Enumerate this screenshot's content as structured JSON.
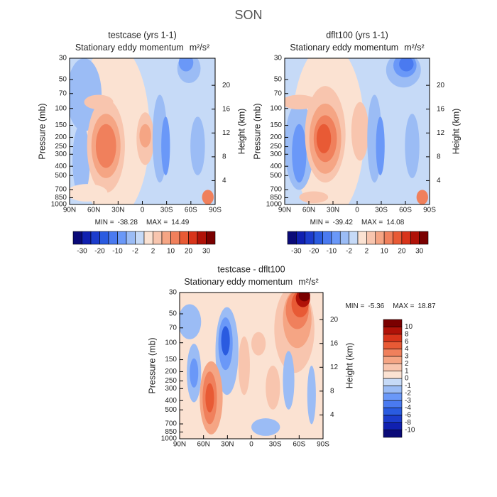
{
  "figure_title": "SON",
  "chart_data": [
    {
      "type": "contour",
      "title": "testcase (yrs 1-1)",
      "subtitle": "Stationary eddy momentum",
      "units": "m²/s²",
      "ylabel": "Pressure (mb)",
      "y2label": "Height (km)",
      "xlim": [
        90,
        -90
      ],
      "xticks": [
        {
          "value": 90,
          "label": "90N"
        },
        {
          "value": 60,
          "label": "60N"
        },
        {
          "value": 30,
          "label": "30N"
        },
        0,
        {
          "value": -30,
          "label": "30S"
        },
        {
          "value": -60,
          "label": "60S"
        },
        {
          "value": -90,
          "label": "90S"
        }
      ],
      "ylim": [
        1000,
        30
      ],
      "log_y": true,
      "yticks": [
        30,
        50,
        70,
        100,
        150,
        200,
        250,
        300,
        400,
        500,
        700,
        850,
        1000
      ],
      "y2ticks": [
        4,
        8,
        12,
        16,
        20
      ],
      "min_label": "MIN =",
      "min": -38.28,
      "max_label": "MAX =",
      "max": 14.49,
      "colorbar": {
        "orientation": "horizontal",
        "colors": [
          "#0a0a78",
          "#1020b0",
          "#1c3ccc",
          "#2a5be0",
          "#4a7af0",
          "#6a98f8",
          "#9bbcf5",
          "#c6daf7",
          "#fbe2d2",
          "#f8c5ae",
          "#f5a584",
          "#f0805c",
          "#e85a35",
          "#d8341a",
          "#b01208",
          "#7a0000"
        ],
        "labels": [
          -30,
          -20,
          -10,
          -2,
          2,
          10,
          20,
          30
        ]
      }
    },
    {
      "type": "contour",
      "title": "dflt100 (yrs 1-1)",
      "subtitle": "Stationary eddy momentum",
      "units": "m²/s²",
      "ylabel": "Pressure (mb)",
      "y2label": "Height (km)",
      "xlim": [
        90,
        -90
      ],
      "xticks": [
        {
          "value": 90,
          "label": "90N"
        },
        {
          "value": 60,
          "label": "60N"
        },
        {
          "value": 30,
          "label": "30N"
        },
        0,
        {
          "value": -30,
          "label": "30S"
        },
        {
          "value": -60,
          "label": "60S"
        },
        {
          "value": -90,
          "label": "90S"
        }
      ],
      "ylim": [
        1000,
        30
      ],
      "log_y": true,
      "yticks": [
        30,
        50,
        70,
        100,
        150,
        200,
        250,
        300,
        400,
        500,
        700,
        850,
        1000
      ],
      "y2ticks": [
        4,
        8,
        12,
        16,
        20
      ],
      "min_label": "MIN =",
      "min": -39.42,
      "max_label": "MAX =",
      "max": 14.08,
      "colorbar": {
        "orientation": "horizontal",
        "colors": [
          "#0a0a78",
          "#1020b0",
          "#1c3ccc",
          "#2a5be0",
          "#4a7af0",
          "#6a98f8",
          "#9bbcf5",
          "#c6daf7",
          "#fbe2d2",
          "#f8c5ae",
          "#f5a584",
          "#f0805c",
          "#e85a35",
          "#d8341a",
          "#b01208",
          "#7a0000"
        ],
        "labels": [
          -30,
          -20,
          -10,
          -2,
          2,
          10,
          20,
          30
        ]
      }
    },
    {
      "type": "contour",
      "title": "testcase - dflt100",
      "subtitle": "Stationary eddy momentum",
      "units": "m²/s²",
      "ylabel": "Pressure (mb)",
      "y2label": "Height (km)",
      "xlim": [
        90,
        -90
      ],
      "xticks": [
        {
          "value": 90,
          "label": "90N"
        },
        {
          "value": 60,
          "label": "60N"
        },
        {
          "value": 30,
          "label": "30N"
        },
        0,
        {
          "value": -30,
          "label": "30S"
        },
        {
          "value": -60,
          "label": "60S"
        },
        {
          "value": -90,
          "label": "90S"
        }
      ],
      "ylim": [
        1000,
        30
      ],
      "log_y": true,
      "yticks": [
        30,
        50,
        70,
        100,
        150,
        200,
        250,
        300,
        400,
        500,
        700,
        850,
        1000
      ],
      "y2ticks": [
        4,
        8,
        12,
        16,
        20
      ],
      "min_label": "MIN =",
      "min": -5.36,
      "max_label": "MAX =",
      "max": 18.87,
      "colorbar": {
        "orientation": "vertical",
        "colors": [
          "#0a0a78",
          "#1020b0",
          "#1c3ccc",
          "#2a5be0",
          "#4a7af0",
          "#6a98f8",
          "#9bbcf5",
          "#c6daf7",
          "#fbe2d2",
          "#f8c5ae",
          "#f5a584",
          "#f0805c",
          "#e85a35",
          "#d8341a",
          "#b01208",
          "#7a0000"
        ],
        "labels": [
          -10,
          -8,
          -6,
          -4,
          -3,
          -2,
          -1,
          0,
          1,
          2,
          3,
          4,
          6,
          8,
          10
        ]
      }
    }
  ]
}
